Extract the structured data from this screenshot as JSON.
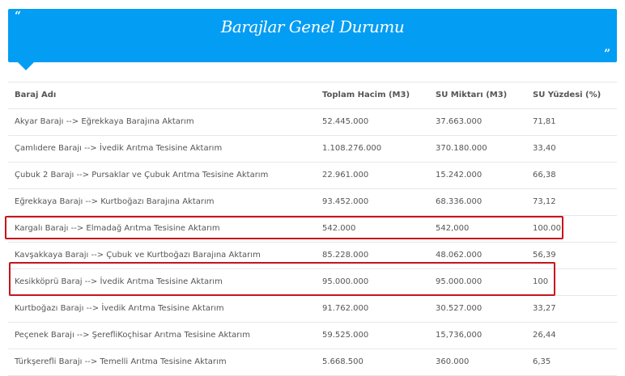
{
  "banner": {
    "title": "Barajlar Genel Durumu",
    "open_quote": "“",
    "close_quote": "”",
    "color": "#039df4"
  },
  "table": {
    "headers": [
      "Baraj Adı",
      "Toplam Hacim (M3)",
      "SU Miktarı (M3)",
      "SU Yüzdesi (%)"
    ],
    "rows": [
      [
        "Akyar Barajı --> Eğrekkaya Barajına Aktarım",
        "52.445.000",
        "37.663.000",
        "71,81"
      ],
      [
        "Çamlıdere Barajı --> İvedik Arıtma Tesisine Aktarım",
        "1.108.276.000",
        "370.180.000",
        "33,40"
      ],
      [
        "Çubuk 2 Barajı --> Pursaklar ve Çubuk Arıtma Tesisine Aktarım",
        "22.961.000",
        "15.242.000",
        "66,38"
      ],
      [
        "Eğrekkaya Barajı --> Kurtboğazı Barajına Aktarım",
        "93.452.000",
        "68.336.000",
        "73,12"
      ],
      [
        "Kargalı Barajı --> Elmadağ Arıtma Tesisine Aktarım",
        "542.000",
        "542,000",
        "100.00"
      ],
      [
        "Kavşakkaya Barajı --> Çubuk ve Kurtboğazı Barajına Aktarım",
        "85.228.000",
        "48.062.000",
        "56,39"
      ],
      [
        "Kesikköprü Baraj --> İvedik Arıtma Tesisine Aktarım",
        "95.000.000",
        "95.000.000",
        "100"
      ],
      [
        "Kurtboğazı Barajı --> İvedik Arıtma Tesisine Aktarım",
        "91.762.000",
        "30.527.000",
        "33,27"
      ],
      [
        "Peçenek Barajı --> ŞerefliKoçhisar Arıtma Tesisine Aktarım",
        "59.525.000",
        "15,736,000",
        "26,44"
      ],
      [
        "Türkşerefli Barajı --> Temelli Arıtma Tesisine Aktarım",
        "5.668.500",
        "360.000",
        "6,35"
      ]
    ]
  },
  "highlight_color": "#c8141c"
}
